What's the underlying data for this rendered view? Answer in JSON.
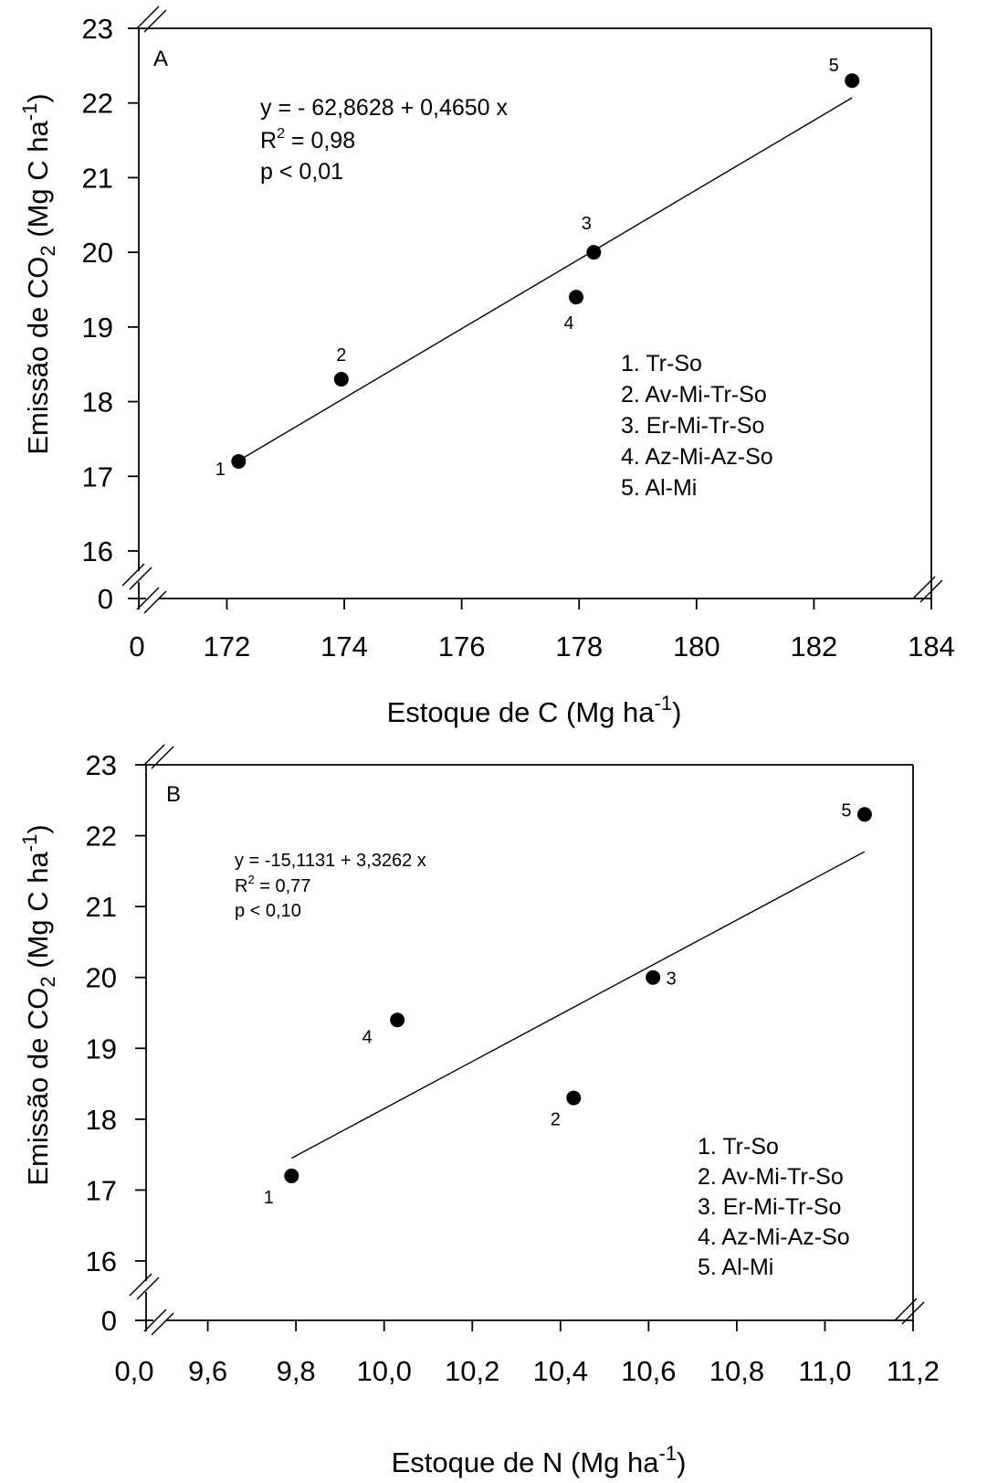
{
  "chart_data": [
    {
      "type": "scatter",
      "panel_label": "A",
      "xlabel": "Estoque de C (Mg ha",
      "xlabel_sup": "-1",
      "xlabel_end": ")",
      "ylabel_pre": "Emissão de CO",
      "ylabel_sub": "2",
      "ylabel_mid": " (Mg C ha",
      "ylabel_sup": "-1",
      "ylabel_end": ")",
      "y_ticks": [
        "23",
        "22",
        "21",
        "20",
        "19",
        "18",
        "17",
        "16"
      ],
      "y_tick_values": [
        23,
        22,
        21,
        20,
        19,
        18,
        17,
        16
      ],
      "y_zero_label": "0",
      "x_zero_label": "0",
      "x_ticks": [
        "172",
        "174",
        "176",
        "178",
        "180",
        "182",
        "184"
      ],
      "x_tick_values": [
        172,
        174,
        176,
        178,
        180,
        182,
        184
      ],
      "ylim": [
        16,
        23
      ],
      "xlim": [
        170.5,
        184
      ],
      "axis_breaks": true,
      "points": [
        {
          "label": "1",
          "x": 172.2,
          "y": 17.2
        },
        {
          "label": "2",
          "x": 173.95,
          "y": 18.3
        },
        {
          "label": "3",
          "x": 178.25,
          "y": 20.0
        },
        {
          "label": "4",
          "x": 177.95,
          "y": 19.4
        },
        {
          "label": "5",
          "x": 182.65,
          "y": 22.3
        }
      ],
      "regression": {
        "intercept": -62.8628,
        "slope": 0.465,
        "x_range": [
          172.2,
          182.65
        ],
        "equation": "y = - 62,8628 + 0,4650 x",
        "r2_pre": "R",
        "r2_sup": "2",
        "r2_post": " = 0,98",
        "p": "p < 0,01"
      },
      "legend": [
        "1. Tr-So",
        "2. Av-Mi-Tr-So",
        "3. Er-Mi-Tr-So",
        "4. Az-Mi-Az-So",
        "5. Al-Mi"
      ]
    },
    {
      "type": "scatter",
      "panel_label": "B",
      "xlabel": "Estoque de N (Mg ha",
      "xlabel_sup": "-1",
      "xlabel_end": ")",
      "ylabel_pre": "Emissão de CO",
      "ylabel_sub": "2",
      "ylabel_mid": " (Mg C ha",
      "ylabel_sup": "-1",
      "ylabel_end": ")",
      "y_ticks": [
        "23",
        "22",
        "21",
        "20",
        "19",
        "18",
        "17",
        "16"
      ],
      "y_tick_values": [
        23,
        22,
        21,
        20,
        19,
        18,
        17,
        16
      ],
      "y_zero_label": "0",
      "x_zero_label": "0,0",
      "x_ticks": [
        "9,6",
        "9,8",
        "10,0",
        "10,2",
        "10,4",
        "10,6",
        "10,8",
        "11,0",
        "11,2"
      ],
      "x_tick_values": [
        9.6,
        9.8,
        10.0,
        10.2,
        10.4,
        10.6,
        10.8,
        11.0,
        11.2
      ],
      "ylim": [
        16,
        23
      ],
      "xlim": [
        9.46,
        11.2
      ],
      "axis_breaks": true,
      "points": [
        {
          "label": "1",
          "x": 9.79,
          "y": 17.2
        },
        {
          "label": "2",
          "x": 10.43,
          "y": 18.3
        },
        {
          "label": "3",
          "x": 10.61,
          "y": 20.0
        },
        {
          "label": "4",
          "x": 10.03,
          "y": 19.4
        },
        {
          "label": "5",
          "x": 11.09,
          "y": 22.3
        }
      ],
      "regression": {
        "intercept": -15.1131,
        "slope": 3.3262,
        "x_range": [
          9.79,
          11.09
        ],
        "equation": "y = -15,1131 + 3,3262 x",
        "r2_pre": "R",
        "r2_sup": "2",
        "r2_post": " = 0,77",
        "p": "p < 0,10"
      },
      "legend": [
        "1. Tr-So",
        "2. Av-Mi-Tr-So",
        "3. Er-Mi-Tr-So",
        "4. Az-Mi-Az-So",
        "5. Al-Mi"
      ]
    }
  ]
}
